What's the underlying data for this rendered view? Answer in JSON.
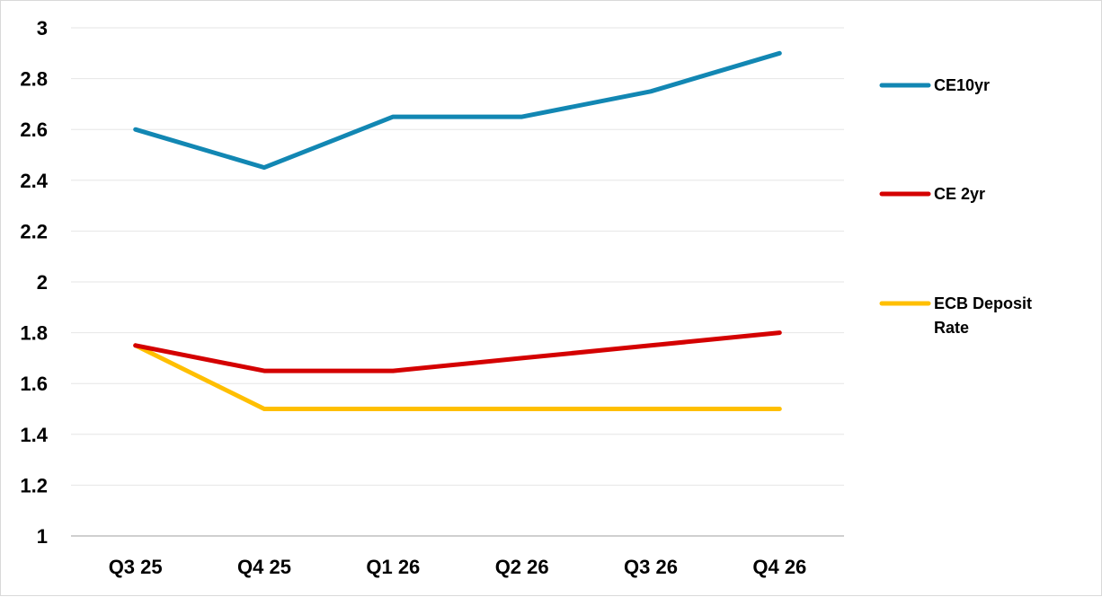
{
  "chart_data": {
    "type": "line",
    "title": "",
    "xlabel": "",
    "ylabel": "",
    "categories": [
      "Q3 25",
      "Q4 25",
      "Q1 26",
      "Q2 26",
      "Q3 26",
      "Q4 26"
    ],
    "ylim": [
      1,
      3
    ],
    "ytick_step": 0.2,
    "grid": true,
    "legend_position": "right",
    "series": [
      {
        "name": "CE10yr",
        "color": "#1287b3",
        "values": [
          2.6,
          2.45,
          2.65,
          2.65,
          2.75,
          2.9
        ]
      },
      {
        "name": "CE 2yr",
        "color": "#d40000",
        "values": [
          1.75,
          1.65,
          1.65,
          1.7,
          1.75,
          1.8
        ]
      },
      {
        "name": "ECB Deposit Rate",
        "color": "#ffbf00",
        "values": [
          1.75,
          1.5,
          1.5,
          1.5,
          1.5,
          1.5
        ]
      }
    ]
  }
}
